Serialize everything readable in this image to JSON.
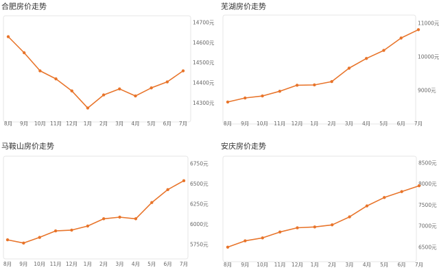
{
  "accent": "#E8742A",
  "chart_data": [
    {
      "type": "line",
      "title": "合肥房价走势",
      "categories": [
        "8月",
        "9月",
        "10月",
        "11月",
        "12月",
        "1月",
        "2月",
        "3月",
        "4月",
        "5月",
        "6月",
        "7月"
      ],
      "values": [
        14630,
        14550,
        14460,
        14420,
        14360,
        14275,
        14340,
        14370,
        14335,
        14375,
        14405,
        14460
      ],
      "yticks": [
        "14700元",
        "14600元",
        "14500元",
        "14400元",
        "14300元"
      ],
      "ytick_values": [
        14700,
        14600,
        14500,
        14400,
        14300
      ],
      "ylim": [
        14250,
        14700
      ],
      "grid": false
    },
    {
      "type": "line",
      "title": "芜湖房价走势",
      "categories": [
        "8月",
        "9月",
        "10月",
        "11月",
        "12月",
        "1月",
        "2月",
        "3月",
        "4月",
        "5月",
        "6月",
        "7月"
      ],
      "values": [
        8650,
        8770,
        8830,
        8970,
        9150,
        9160,
        9260,
        9660,
        9950,
        10190,
        10560,
        10810
      ],
      "yticks": [
        "11000元",
        "10000元",
        "9000元"
      ],
      "ytick_values": [
        11000,
        10000,
        9000
      ],
      "ylim": [
        8300,
        11000
      ],
      "grid": false
    },
    {
      "type": "line",
      "title": "马鞍山房价走势",
      "categories": [
        "8月",
        "9月",
        "10月",
        "11月",
        "12月",
        "1月",
        "2月",
        "3月",
        "4月",
        "5月",
        "6月",
        "7月"
      ],
      "values": [
        5810,
        5770,
        5840,
        5920,
        5930,
        5980,
        6070,
        6090,
        6070,
        6270,
        6430,
        6540
      ],
      "yticks": [
        "6750元",
        "6500元",
        "6250元",
        "6000元",
        "5750元"
      ],
      "ytick_values": [
        6750,
        6500,
        6250,
        6000,
        5750
      ],
      "ylim": [
        5650,
        6750
      ],
      "grid": false
    },
    {
      "type": "line",
      "title": "安庆房价走势",
      "categories": [
        "8月",
        "9月",
        "10月",
        "11月",
        "12月",
        "1月",
        "2月",
        "3月",
        "4月",
        "5月",
        "6月",
        "7月"
      ],
      "values": [
        6500,
        6650,
        6720,
        6860,
        6960,
        6980,
        7030,
        7220,
        7480,
        7680,
        7820,
        7960
      ],
      "yticks": [
        "8500元",
        "8000元",
        "7500元",
        "7000元",
        "6500元"
      ],
      "ytick_values": [
        8500,
        8000,
        7500,
        7000,
        6500
      ],
      "ylim": [
        6350,
        8500
      ],
      "grid": false
    }
  ]
}
